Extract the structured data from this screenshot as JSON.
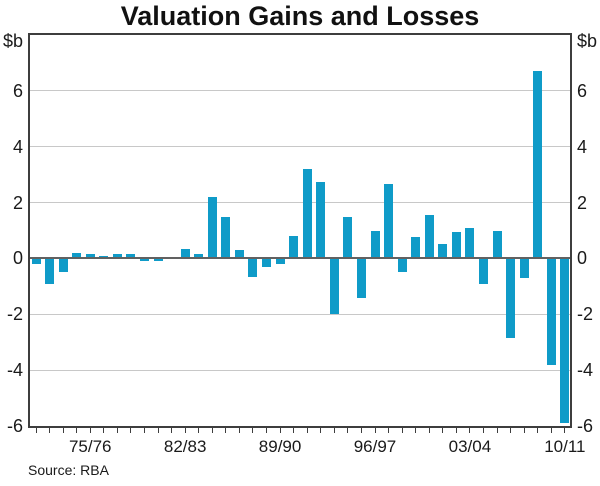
{
  "title": "Valuation Gains and Losses",
  "source": "Source: RBA",
  "y_axis_left": {
    "unit_label": "$b",
    "ticks": [
      "6",
      "4",
      "2",
      "0",
      "-2",
      "-4",
      "-6"
    ],
    "tick_values": [
      6,
      4,
      2,
      0,
      -2,
      -4,
      -6
    ]
  },
  "y_axis_right": {
    "unit_label": "$b",
    "ticks": [
      "6",
      "4",
      "2",
      "0",
      "-2",
      "-4",
      "-6"
    ],
    "tick_values": [
      6,
      4,
      2,
      0,
      -2,
      -4,
      -6
    ]
  },
  "chart_data": {
    "type": "bar",
    "title": "Valuation Gains and Losses",
    "unit": "$b",
    "categories": [
      "71/72",
      "72/73",
      "73/74",
      "74/75",
      "75/76",
      "76/77",
      "77/78",
      "78/79",
      "79/80",
      "80/81",
      "81/82",
      "82/83",
      "83/84",
      "84/85",
      "85/86",
      "86/87",
      "87/88",
      "88/89",
      "89/90",
      "90/91",
      "91/92",
      "92/93",
      "93/94",
      "94/95",
      "95/96",
      "96/97",
      "97/98",
      "98/99",
      "99/00",
      "00/01",
      "01/02",
      "02/03",
      "03/04",
      "04/05",
      "05/06",
      "06/07",
      "07/08",
      "08/09",
      "09/10",
      "10/11"
    ],
    "values": [
      -0.2,
      -0.9,
      -0.5,
      0.2,
      0.15,
      0.1,
      0.15,
      0.15,
      -0.1,
      -0.1,
      0.0,
      0.35,
      0.15,
      2.2,
      1.5,
      0.3,
      -0.65,
      -0.3,
      -0.2,
      0.8,
      3.2,
      2.75,
      -2.0,
      1.5,
      -1.4,
      1.0,
      2.65,
      -0.5,
      0.75,
      1.55,
      0.5,
      0.95,
      1.1,
      -0.9,
      1.0,
      -2.85,
      -0.7,
      6.7,
      -3.8,
      -5.9
    ],
    "x_tick_labels": [
      "75/76",
      "82/83",
      "89/90",
      "96/97",
      "03/04",
      "10/11"
    ],
    "x_tick_label_indices": [
      4,
      11,
      18,
      25,
      32,
      39
    ],
    "ylim": [
      -6,
      8
    ],
    "y_gridlines": [
      6,
      4,
      2,
      -2,
      -4
    ],
    "grid_on": true,
    "bar_color": "#0f9bc8",
    "zero_line_color": "#616161",
    "grid_color": "#c8c8c8",
    "axis_color": "#3e3e3e"
  }
}
